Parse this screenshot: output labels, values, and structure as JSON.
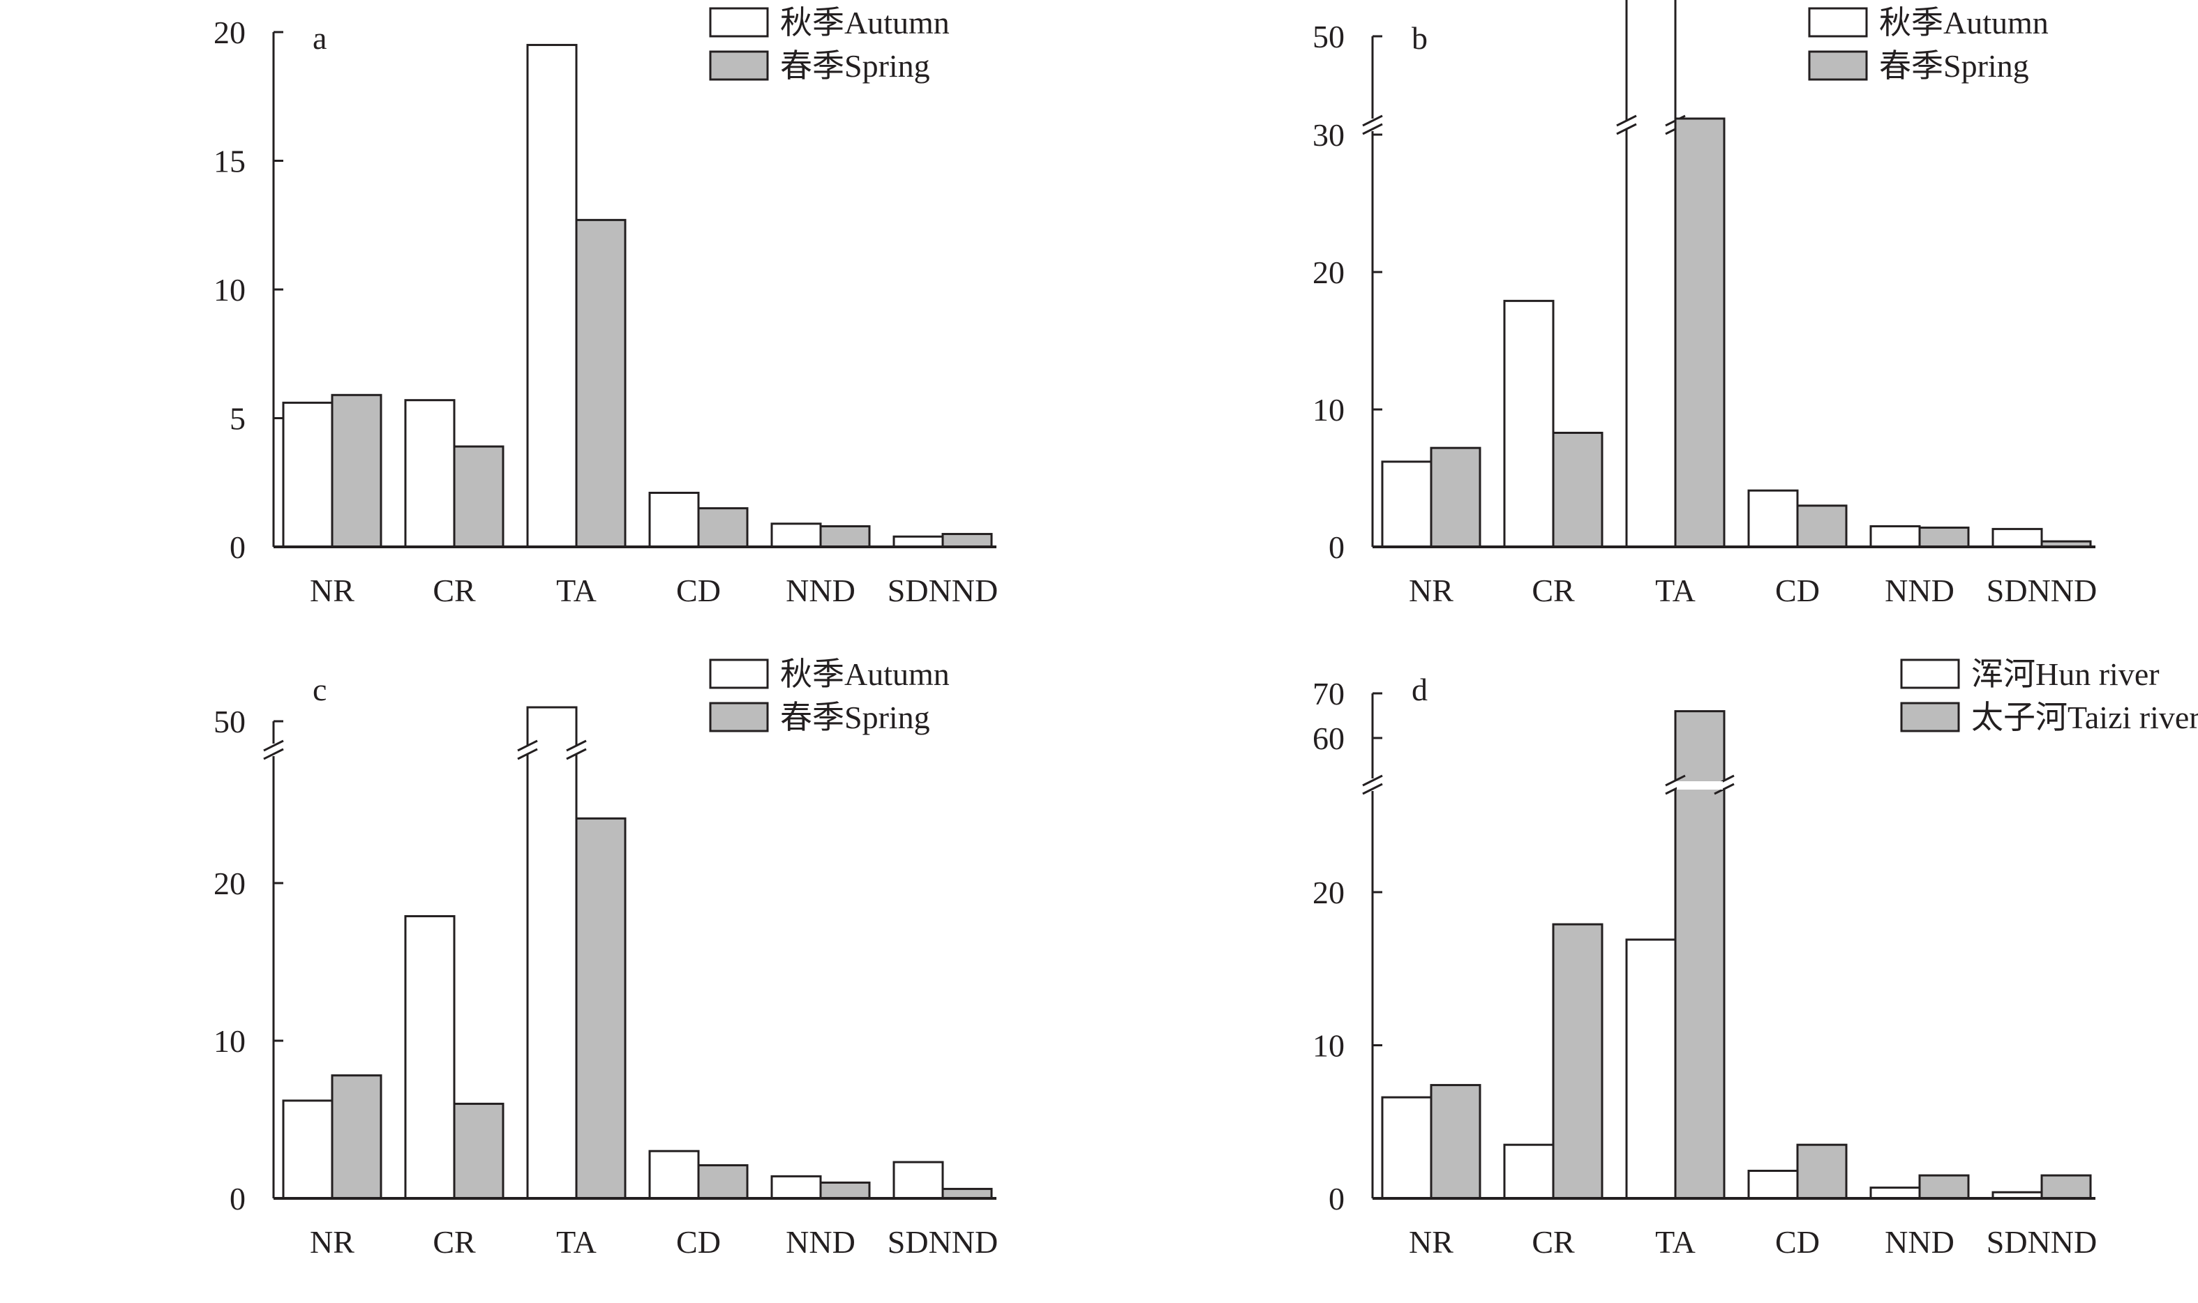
{
  "chart_data": [
    {
      "type": "bar",
      "panel_label": "a",
      "categories": [
        "NR",
        "CR",
        "TA",
        "CD",
        "NND",
        "SDNND"
      ],
      "series": [
        {
          "name": "秋季Autumn",
          "values": [
            5.6,
            5.7,
            19.5,
            2.1,
            0.9,
            0.4
          ]
        },
        {
          "name": "春季Spring",
          "values": [
            5.9,
            3.9,
            12.7,
            1.5,
            0.8,
            0.5
          ]
        }
      ],
      "yticks": [
        0,
        5,
        10,
        15,
        20
      ],
      "ylim": [
        0,
        20
      ],
      "axis_break": null,
      "legend_position": "top-right",
      "title": "",
      "xlabel": "",
      "ylabel": ""
    },
    {
      "type": "bar",
      "panel_label": "b",
      "categories": [
        "NR",
        "CR",
        "TA",
        "CD",
        "NND",
        "SDNND"
      ],
      "series": [
        {
          "name": "秋季Autumn",
          "values": [
            6.2,
            17.9,
            51.5,
            4.1,
            1.5,
            1.3
          ]
        },
        {
          "name": "春季Spring",
          "values": [
            7.2,
            8.3,
            30.1,
            3.0,
            1.4,
            0.4
          ]
        }
      ],
      "yticks": [
        0,
        10,
        20,
        30,
        50
      ],
      "ylim": [
        0,
        52
      ],
      "axis_break": [
        30,
        50
      ],
      "legend_position": "top-right",
      "title": "",
      "xlabel": "",
      "ylabel": ""
    },
    {
      "type": "bar",
      "panel_label": "c",
      "categories": [
        "NR",
        "CR",
        "TA",
        "CD",
        "NND",
        "SDNND"
      ],
      "series": [
        {
          "name": "秋季Autumn",
          "values": [
            6.2,
            17.9,
            52,
            3.0,
            1.4,
            2.3
          ]
        },
        {
          "name": "春季Spring",
          "values": [
            7.8,
            6.0,
            24.1,
            2.1,
            1.0,
            0.6
          ]
        }
      ],
      "yticks": [
        0,
        10,
        20,
        50
      ],
      "ylim": [
        0,
        52
      ],
      "axis_break": [
        27,
        50
      ],
      "legend_position": "top-right",
      "title": "",
      "xlabel": "",
      "ylabel": ""
    },
    {
      "type": "bar",
      "panel_label": "d",
      "categories": [
        "NR",
        "CR",
        "TA",
        "CD",
        "NND",
        "SDNND"
      ],
      "series": [
        {
          "name": "浑河Hun river",
          "values": [
            6.6,
            3.5,
            16.9,
            1.8,
            0.7,
            0.4
          ]
        },
        {
          "name": "太子河Taizi river",
          "values": [
            7.4,
            17.9,
            66.0,
            3.5,
            1.5,
            1.5
          ]
        }
      ],
      "yticks": [
        0,
        10,
        20,
        60,
        70
      ],
      "ylim": [
        0,
        70
      ],
      "axis_break": [
        24,
        54
      ],
      "legend_position": "top-right",
      "title": "",
      "xlabel": "",
      "ylabel": ""
    }
  ],
  "colors": {
    "series_1_fill": "#ffffff",
    "series_2_fill": "#bcbcbc",
    "stroke": "#231f20"
  }
}
